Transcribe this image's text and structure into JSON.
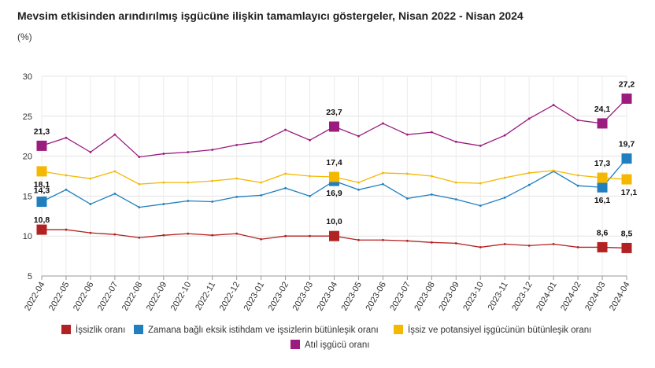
{
  "chart_data": {
    "type": "line",
    "title": "Mevsim etkisinden arındırılmış işgücüne ilişkin tamamlayıcı göstergeler, Nisan 2022 - Nisan 2024",
    "unit_label": "(%)",
    "ylim": [
      5,
      30
    ],
    "yticks": [
      5,
      10,
      15,
      20,
      25,
      30
    ],
    "grid": true,
    "legend_position": "bottom",
    "categories": [
      "2022-04",
      "2022-05",
      "2022-06",
      "2022-07",
      "2022-08",
      "2022-09",
      "2022-10",
      "2022-11",
      "2022-12",
      "2023-01",
      "2023-02",
      "2023-03",
      "2023-04",
      "2023-05",
      "2023-06",
      "2023-07",
      "2023-08",
      "2023-09",
      "2023-10",
      "2023-11",
      "2023-12",
      "2024-01",
      "2024-02",
      "2024-03",
      "2024-04"
    ],
    "series": [
      {
        "name": "İşsizlik oranı",
        "color": "#b22222",
        "values": [
          10.8,
          10.8,
          10.4,
          10.2,
          9.8,
          10.1,
          10.3,
          10.1,
          10.3,
          9.6,
          10.0,
          10.0,
          10.0,
          9.5,
          9.5,
          9.4,
          9.2,
          9.1,
          8.6,
          9.0,
          8.8,
          9.0,
          8.6,
          8.6,
          8.5
        ],
        "labeled": [
          {
            "index": 0,
            "label": "10,8"
          },
          {
            "index": 12,
            "label": "10,0"
          },
          {
            "index": 23,
            "label": "8,6"
          },
          {
            "index": 24,
            "label": "8,5"
          }
        ]
      },
      {
        "name": "Zamana bağlı eksik istihdam ve işsizlerin bütünleşik oranı",
        "color": "#1f7fbf",
        "values": [
          14.3,
          15.8,
          14.0,
          15.3,
          13.6,
          14.0,
          14.4,
          14.3,
          14.9,
          15.1,
          16.0,
          15.0,
          16.9,
          15.8,
          16.5,
          14.7,
          15.2,
          14.6,
          13.8,
          14.8,
          16.4,
          18.1,
          16.3,
          16.1,
          19.7
        ],
        "labeled": [
          {
            "index": 0,
            "label": "14,3"
          },
          {
            "index": 12,
            "label": "16,9"
          },
          {
            "index": 23,
            "label": "16,1"
          },
          {
            "index": 24,
            "label": "19,7"
          }
        ]
      },
      {
        "name": "İşsiz ve potansiyel işgücünün bütünleşik oranı",
        "color": "#f5b800",
        "values": [
          18.1,
          17.6,
          17.2,
          18.1,
          16.5,
          16.7,
          16.7,
          16.9,
          17.2,
          16.7,
          17.8,
          17.5,
          17.4,
          16.7,
          17.9,
          17.8,
          17.5,
          16.7,
          16.6,
          17.3,
          17.9,
          18.2,
          17.6,
          17.3,
          17.1
        ],
        "labeled": [
          {
            "index": 0,
            "label": "18,1"
          },
          {
            "index": 12,
            "label": "17,4"
          },
          {
            "index": 23,
            "label": "17,3"
          },
          {
            "index": 24,
            "label": "17,1"
          }
        ]
      },
      {
        "name": "Atıl işgücü oranı",
        "color": "#9b1b7f",
        "values": [
          21.3,
          22.3,
          20.5,
          22.7,
          19.9,
          20.3,
          20.5,
          20.8,
          21.4,
          21.8,
          23.3,
          22.0,
          23.7,
          22.5,
          24.1,
          22.7,
          23.0,
          21.8,
          21.3,
          22.6,
          24.7,
          26.4,
          24.5,
          24.1,
          27.2
        ],
        "labeled": [
          {
            "index": 0,
            "label": "21,3"
          },
          {
            "index": 12,
            "label": "23,7"
          },
          {
            "index": 23,
            "label": "24,1"
          },
          {
            "index": 24,
            "label": "27,2"
          }
        ]
      }
    ]
  }
}
